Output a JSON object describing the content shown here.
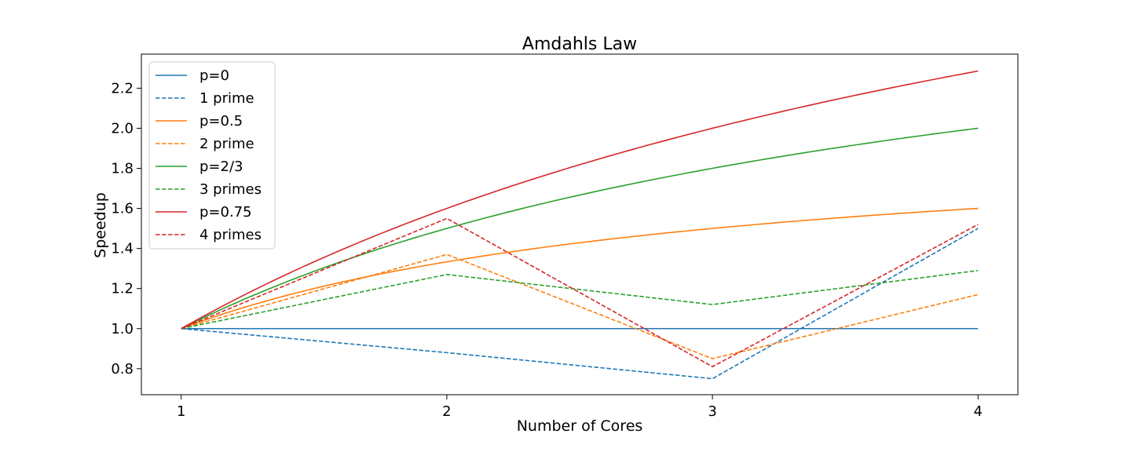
{
  "chart_data": {
    "type": "line",
    "title": "Amdahls Law",
    "xlabel": "Number of Cores",
    "ylabel": "Speedup",
    "xlim": [
      0.85,
      4.15
    ],
    "ylim": [
      0.67,
      2.37
    ],
    "xticks": [
      1,
      2,
      3,
      4
    ],
    "yticks": [
      0.8,
      1.0,
      1.2,
      1.4,
      1.6,
      1.8,
      2.0,
      2.2
    ],
    "grid": false,
    "legend_position": "top-left",
    "series": [
      {
        "name": "p=0",
        "style": "solid",
        "color": "#1f77b4",
        "p": 0,
        "x": [
          1,
          4
        ],
        "y": [
          1.0,
          1.0
        ]
      },
      {
        "name": "1 prime",
        "style": "dashed",
        "color": "#1f77b4",
        "x": [
          1,
          2,
          3,
          4
        ],
        "y": [
          1.0,
          0.88,
          0.75,
          1.5
        ]
      },
      {
        "name": "p=0.5",
        "style": "solid",
        "color": "#ff7f0e",
        "p": 0.5,
        "x": [
          1,
          4
        ],
        "y": [
          1.0,
          1.6
        ]
      },
      {
        "name": "2 prime",
        "style": "dashed",
        "color": "#ff7f0e",
        "x": [
          1,
          2,
          3,
          4
        ],
        "y": [
          1.0,
          1.37,
          0.85,
          1.17
        ]
      },
      {
        "name": "p=2/3",
        "style": "solid",
        "color": "#2ca02c",
        "p": 0.6667,
        "x": [
          1,
          4
        ],
        "y": [
          1.0,
          2.0
        ]
      },
      {
        "name": "3 primes",
        "style": "dashed",
        "color": "#2ca02c",
        "x": [
          1,
          2,
          3,
          4
        ],
        "y": [
          1.0,
          1.27,
          1.12,
          1.29
        ]
      },
      {
        "name": "p=0.75",
        "style": "solid",
        "color": "#d62728",
        "p": 0.75,
        "x": [
          1,
          4
        ],
        "y": [
          1.0,
          2.29
        ]
      },
      {
        "name": "4 primes",
        "style": "dashed",
        "color": "#d62728",
        "x": [
          1,
          2,
          3,
          4
        ],
        "y": [
          1.0,
          1.55,
          0.81,
          1.52
        ]
      }
    ]
  }
}
